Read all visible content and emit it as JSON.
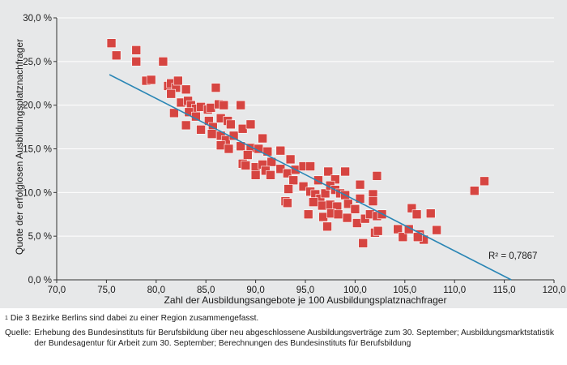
{
  "chart_data": {
    "type": "scatter",
    "xlabel": "Zahl der Ausbildungsangebote je 100 Ausbildungsplatznachfrager",
    "ylabel": "Quote der erfolglosen Ausbildungsplatznachfrager",
    "xlim": [
      70,
      120
    ],
    "ylim": [
      0,
      30
    ],
    "x_ticks": [
      "70,0",
      "75,0",
      "80,0",
      "85,0",
      "90,0",
      "95,0",
      "100,0",
      "105,0",
      "110,0",
      "115,0",
      "120,0"
    ],
    "y_ticks": [
      "0,0 %",
      "5,0 %",
      "10,0 %",
      "15,0 %",
      "20,0 %",
      "25,0 %",
      "30,0 %"
    ],
    "grid": "horizontal",
    "marker_color": "#d64541",
    "trendline_color": "#2b86b5",
    "trendline": {
      "x": [
        75.3,
        115.7
      ],
      "y": [
        23.5,
        0.0
      ]
    },
    "r_squared_label": "R² = 0,7867",
    "points": [
      [
        75.5,
        27.1
      ],
      [
        76.0,
        25.7
      ],
      [
        78.0,
        26.3
      ],
      [
        78.0,
        25.0
      ],
      [
        79.0,
        22.8
      ],
      [
        79.5,
        22.9
      ],
      [
        80.7,
        25.0
      ],
      [
        81.2,
        22.2
      ],
      [
        81.5,
        22.5
      ],
      [
        82.0,
        22.0
      ],
      [
        82.2,
        22.8
      ],
      [
        83.0,
        21.8
      ],
      [
        81.5,
        21.3
      ],
      [
        82.5,
        20.3
      ],
      [
        83.2,
        20.5
      ],
      [
        83.5,
        20.0
      ],
      [
        84.0,
        19.6
      ],
      [
        83.3,
        19.2
      ],
      [
        81.8,
        19.1
      ],
      [
        84.5,
        19.8
      ],
      [
        85.2,
        19.5
      ],
      [
        85.5,
        19.7
      ],
      [
        86.3,
        20.1
      ],
      [
        86.0,
        22.0
      ],
      [
        86.8,
        20.0
      ],
      [
        88.5,
        20.0
      ],
      [
        83.0,
        17.7
      ],
      [
        84.0,
        18.7
      ],
      [
        84.5,
        17.2
      ],
      [
        85.3,
        18.2
      ],
      [
        85.7,
        17.5
      ],
      [
        86.5,
        18.5
      ],
      [
        87.2,
        18.2
      ],
      [
        87.5,
        17.8
      ],
      [
        86.5,
        16.5
      ],
      [
        85.6,
        16.7
      ],
      [
        87.0,
        16.0
      ],
      [
        87.8,
        16.5
      ],
      [
        88.7,
        17.3
      ],
      [
        89.5,
        17.8
      ],
      [
        86.5,
        15.4
      ],
      [
        87.3,
        15.0
      ],
      [
        88.5,
        15.3
      ],
      [
        89.5,
        15.1
      ],
      [
        90.3,
        15.0
      ],
      [
        89.2,
        14.3
      ],
      [
        90.7,
        16.2
      ],
      [
        91.2,
        14.7
      ],
      [
        88.7,
        13.3
      ],
      [
        89.0,
        13.1
      ],
      [
        90.0,
        12.9
      ],
      [
        90.7,
        13.2
      ],
      [
        91.6,
        13.5
      ],
      [
        92.5,
        14.8
      ],
      [
        90.0,
        12.0
      ],
      [
        91.0,
        12.5
      ],
      [
        91.5,
        12.0
      ],
      [
        92.5,
        12.7
      ],
      [
        93.2,
        12.2
      ],
      [
        93.5,
        13.8
      ],
      [
        94.0,
        12.6
      ],
      [
        94.8,
        13.0
      ],
      [
        95.5,
        13.0
      ],
      [
        96.3,
        11.4
      ],
      [
        97.3,
        12.4
      ],
      [
        98.0,
        11.5
      ],
      [
        99.0,
        12.4
      ],
      [
        93.8,
        11.4
      ],
      [
        93.3,
        10.4
      ],
      [
        94.8,
        10.7
      ],
      [
        95.5,
        10.1
      ],
      [
        96.0,
        9.8
      ],
      [
        96.5,
        9.3
      ],
      [
        97.0,
        9.9
      ],
      [
        97.5,
        10.8
      ],
      [
        98.0,
        10.3
      ],
      [
        98.5,
        9.9
      ],
      [
        99.0,
        9.7
      ],
      [
        100.5,
        10.9
      ],
      [
        93.0,
        9.0
      ],
      [
        93.2,
        8.8
      ],
      [
        95.8,
        8.9
      ],
      [
        96.7,
        8.5
      ],
      [
        97.5,
        8.6
      ],
      [
        98.2,
        8.4
      ],
      [
        99.3,
        8.7
      ],
      [
        100.0,
        8.1
      ],
      [
        100.5,
        9.3
      ],
      [
        101.8,
        9.8
      ],
      [
        101.8,
        9.0
      ],
      [
        102.2,
        11.9
      ],
      [
        95.3,
        7.5
      ],
      [
        96.8,
        7.2
      ],
      [
        97.6,
        7.6
      ],
      [
        98.3,
        7.5
      ],
      [
        99.2,
        7.1
      ],
      [
        100.2,
        6.5
      ],
      [
        101.0,
        7.0
      ],
      [
        101.5,
        7.5
      ],
      [
        102.2,
        7.3
      ],
      [
        102.7,
        7.5
      ],
      [
        97.2,
        6.1
      ],
      [
        102.0,
        5.4
      ],
      [
        102.3,
        5.6
      ],
      [
        100.8,
        4.2
      ],
      [
        104.3,
        5.8
      ],
      [
        104.8,
        4.9
      ],
      [
        105.4,
        5.8
      ],
      [
        105.7,
        8.2
      ],
      [
        106.2,
        7.5
      ],
      [
        106.5,
        5.2
      ],
      [
        106.9,
        4.6
      ],
      [
        107.6,
        7.6
      ],
      [
        108.2,
        5.7
      ],
      [
        106.3,
        4.9
      ],
      [
        112.0,
        10.2
      ],
      [
        113.0,
        11.3
      ]
    ]
  },
  "notes": {
    "footnote_marker": "1",
    "footnote_text": "Die 3 Bezirke Berlins sind dabei zu einer Region zusammengefasst.",
    "source_label": "Quelle:",
    "source_text": "Erhebung des Bundesinstituts für Berufsbildung über neu abgeschlossene Ausbildungsverträge zum 30. September; Ausbildungsmarktstatistik der Bundesagentur für Arbeit zum 30. September; Berechnungen des Bundesinstituts für Berufsbildung"
  }
}
